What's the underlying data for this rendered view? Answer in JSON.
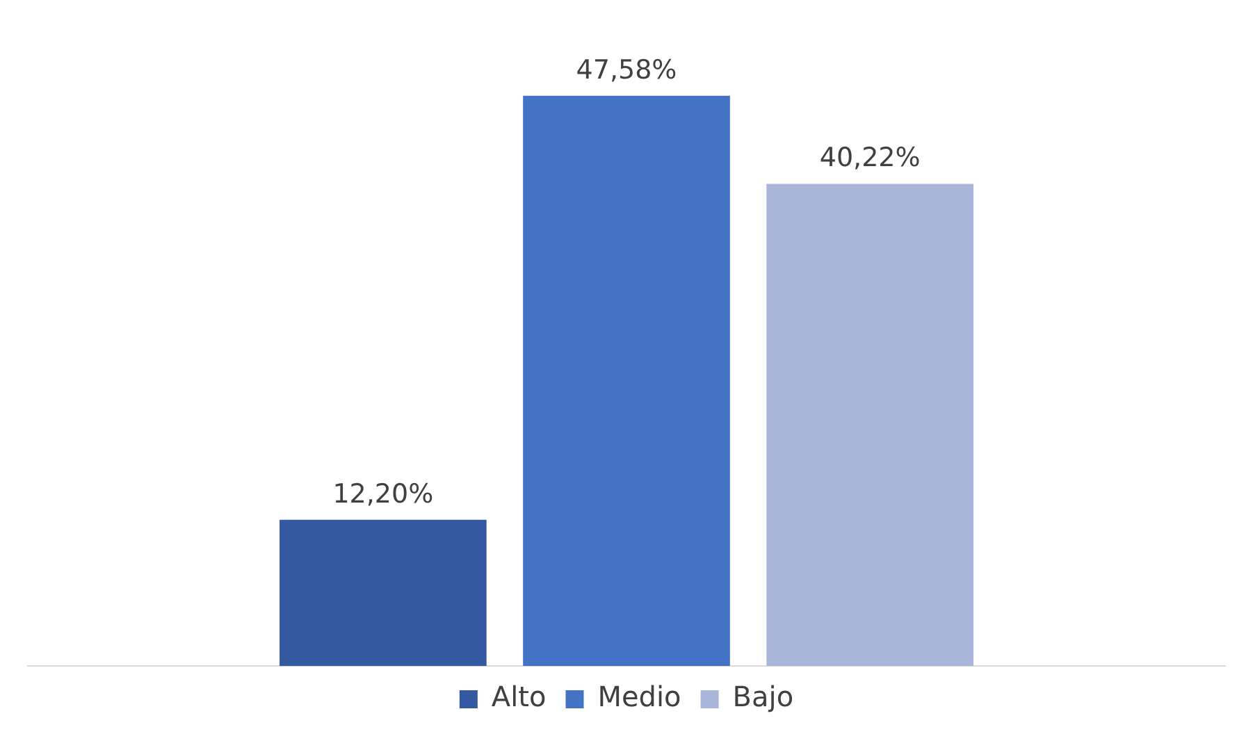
{
  "chart_data": {
    "type": "bar",
    "categories": [
      null
    ],
    "series": [
      {
        "name": "Alto",
        "color": "#335aa0",
        "values": [
          12.2
        ],
        "value_labels": [
          "12,20%"
        ]
      },
      {
        "name": "Medio",
        "color": "#4472c4",
        "values": [
          47.58
        ],
        "value_labels": [
          "47,58%"
        ]
      },
      {
        "name": "Bajo",
        "color": "#a9b6d9",
        "values": [
          40.22
        ],
        "value_labels": [
          "40,22%"
        ]
      }
    ],
    "tick_labels": false,
    "grid": false,
    "legend": "bottom"
  }
}
